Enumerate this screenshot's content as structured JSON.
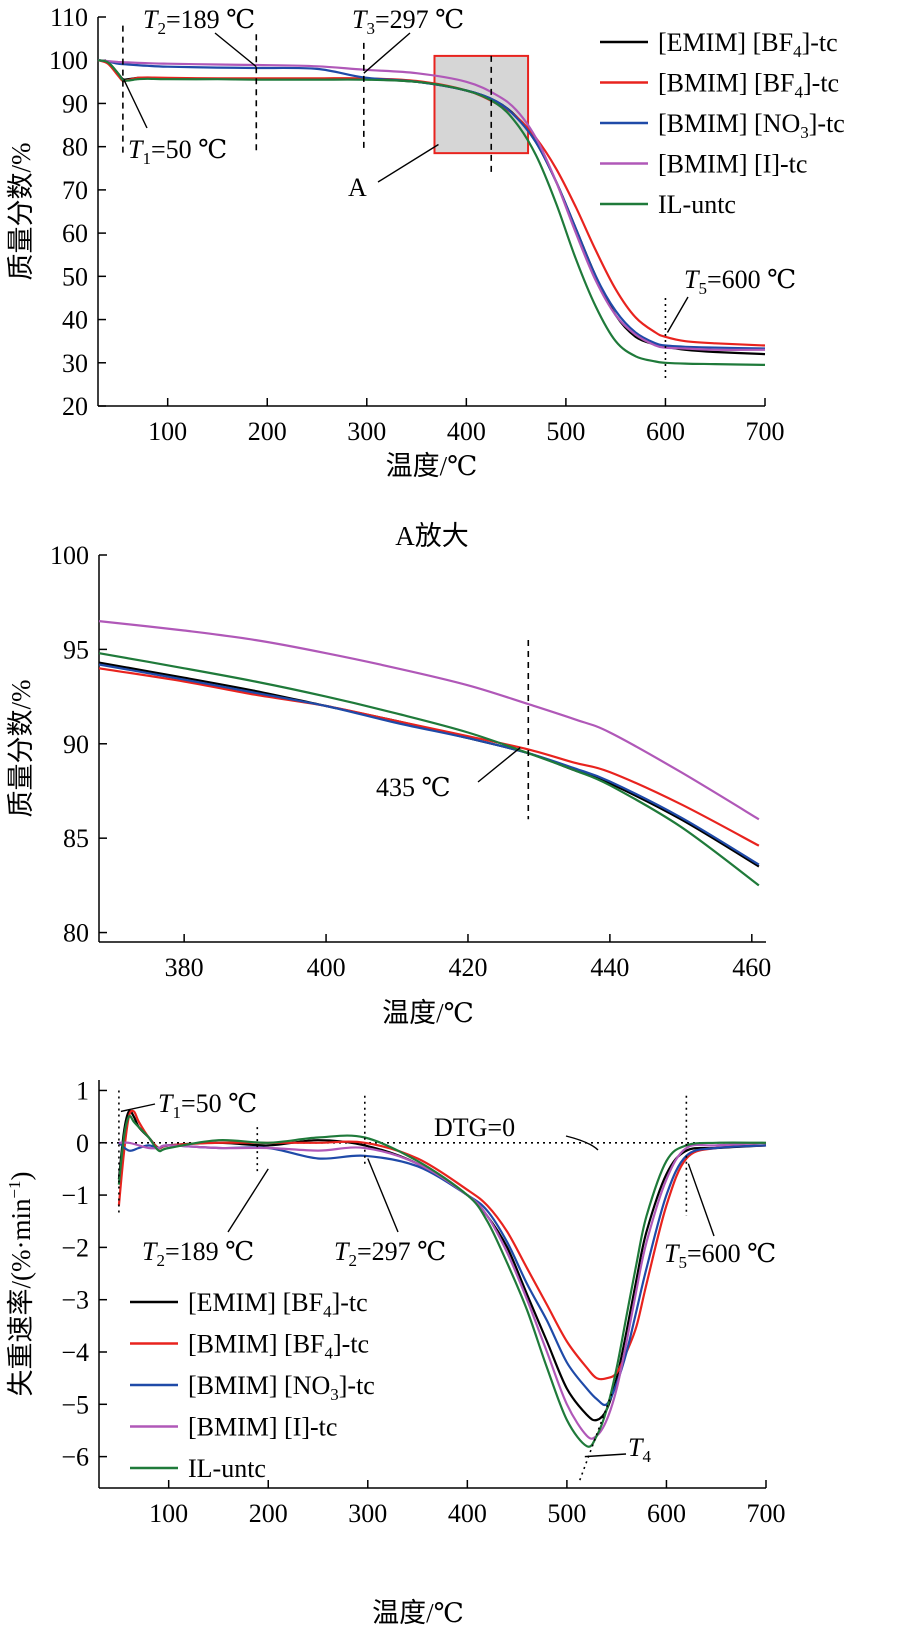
{
  "chart_data": [
    {
      "type": "line",
      "xlabel": "温度/℃",
      "ylabel": "质量分数/%",
      "xlim": [
        30,
        700
      ],
      "ylim": [
        20,
        110
      ],
      "xticks": [
        100,
        200,
        300,
        400,
        500,
        600,
        700
      ],
      "yticks": [
        20,
        30,
        40,
        50,
        60,
        70,
        80,
        90,
        100,
        110
      ],
      "legend_position": "top-right",
      "series": [
        {
          "name": "[EMIM] [BF4]-tc",
          "color": "#000000",
          "x": [
            30,
            40,
            50,
            55,
            60,
            70,
            80,
            100,
            150,
            190,
            250,
            297,
            350,
            400,
            430,
            450,
            470,
            490,
            510,
            530,
            550,
            570,
            590,
            600,
            620,
            650,
            700
          ],
          "y": [
            100,
            99.5,
            97,
            95.6,
            95.6,
            95.9,
            95.9,
            95.8,
            95.7,
            95.6,
            95.7,
            95.6,
            95,
            93,
            90.5,
            87,
            81,
            72,
            61,
            50,
            41,
            36,
            34.2,
            33.7,
            33,
            32.5,
            32
          ]
        },
        {
          "name": "[BMIM] [BF4]-tc",
          "color": "#e8231e",
          "x": [
            30,
            40,
            50,
            55,
            60,
            70,
            80,
            100,
            150,
            190,
            250,
            297,
            350,
            400,
            430,
            450,
            470,
            490,
            510,
            530,
            550,
            570,
            590,
            600,
            620,
            650,
            700
          ],
          "y": [
            100,
            99.2,
            96.5,
            95.2,
            95.4,
            95.9,
            96,
            95.9,
            95.8,
            95.8,
            95.8,
            95.8,
            95.2,
            93,
            90,
            87,
            82,
            75,
            66,
            56,
            47,
            40.5,
            37,
            36,
            35,
            34.5,
            34
          ]
        },
        {
          "name": "[BMIM] [NO3]-tc",
          "color": "#1f4aa8",
          "x": [
            30,
            40,
            50,
            60,
            80,
            100,
            150,
            190,
            250,
            297,
            350,
            400,
            430,
            450,
            470,
            490,
            510,
            530,
            550,
            570,
            590,
            600,
            620,
            650,
            700
          ],
          "y": [
            100,
            99.7,
            99.2,
            99,
            98.7,
            98.5,
            98.3,
            98.2,
            98,
            96,
            95,
            93,
            90.5,
            86.8,
            81,
            72,
            61,
            50,
            42,
            37,
            34.5,
            34,
            33.7,
            33.5,
            33.3
          ]
        },
        {
          "name": "[BMIM] [I]-tc",
          "color": "#b058b8",
          "x": [
            30,
            40,
            50,
            60,
            80,
            100,
            150,
            190,
            250,
            297,
            350,
            400,
            430,
            450,
            470,
            490,
            510,
            530,
            550,
            570,
            590,
            600,
            620,
            650,
            700
          ],
          "y": [
            100,
            99.8,
            99.6,
            99.5,
            99.3,
            99.2,
            99,
            98.9,
            98.6,
            97.8,
            97,
            95,
            92,
            88.5,
            82,
            72,
            60,
            49,
            41,
            36.5,
            34,
            33.5,
            33.3,
            33,
            33
          ]
        },
        {
          "name": "IL-untc",
          "color": "#1f7a3a",
          "x": [
            30,
            40,
            50,
            55,
            60,
            70,
            80,
            100,
            150,
            190,
            250,
            297,
            350,
            400,
            430,
            450,
            470,
            490,
            510,
            530,
            550,
            570,
            590,
            600,
            620,
            650,
            700
          ],
          "y": [
            100,
            99.5,
            97,
            95.4,
            95.3,
            95.6,
            95.7,
            95.6,
            95.6,
            95.5,
            95.5,
            95.5,
            95,
            93,
            90,
            85.5,
            78,
            67,
            54,
            43,
            35,
            31.5,
            30.3,
            30,
            29.8,
            29.7,
            29.5
          ]
        }
      ],
      "annotations": [
        {
          "text_prefix": "T",
          "subscript": "1",
          "text_suffix": "=50 ℃",
          "x": 55
        },
        {
          "text_prefix": "T",
          "subscript": "2",
          "text_suffix": "=189 ℃",
          "x": 189
        },
        {
          "text_prefix": "T",
          "subscript": "3",
          "text_suffix": "=297 ℃",
          "x": 297
        },
        {
          "text_prefix": "T",
          "subscript": "5",
          "text_suffix": "=600 ℃",
          "x": 600
        },
        {
          "text": "A",
          "region_x": [
            368,
            462
          ],
          "region_y": [
            78.5,
            101
          ]
        }
      ]
    },
    {
      "type": "line",
      "title": "A放大",
      "xlabel": "温度/℃",
      "ylabel": "质量分数/%",
      "xlim": [
        368,
        462
      ],
      "ylim": [
        79.5,
        100
      ],
      "xticks": [
        380,
        400,
        420,
        440,
        460
      ],
      "yticks": [
        80,
        85,
        90,
        95,
        100
      ],
      "series": [
        {
          "name": "[EMIM] [BF4]-tc",
          "color": "#000000",
          "x": [
            368,
            380,
            390,
            400,
            410,
            420,
            428.5,
            435,
            440,
            450,
            461
          ],
          "y": [
            94.3,
            93.5,
            92.8,
            92,
            91.2,
            90.3,
            89.5,
            88.6,
            87.9,
            86,
            83.5
          ]
        },
        {
          "name": "[BMIM] [BF4]-tc",
          "color": "#e8231e",
          "x": [
            368,
            380,
            390,
            400,
            410,
            420,
            428.5,
            435,
            440,
            450,
            461
          ],
          "y": [
            94,
            93.3,
            92.6,
            92,
            91.2,
            90.4,
            89.7,
            89,
            88.5,
            86.8,
            84.6
          ]
        },
        {
          "name": "[BMIM] [NO3]-tc",
          "color": "#1f4aa8",
          "x": [
            368,
            380,
            390,
            400,
            410,
            420,
            428.5,
            435,
            440,
            450,
            461
          ],
          "y": [
            94.2,
            93.4,
            92.7,
            92,
            91.1,
            90.3,
            89.5,
            88.7,
            88,
            86.1,
            83.6
          ]
        },
        {
          "name": "[BMIM] [I]-tc",
          "color": "#b058b8",
          "x": [
            368,
            380,
            390,
            400,
            410,
            420,
            428.5,
            435,
            440,
            450,
            461
          ],
          "y": [
            96.5,
            96,
            95.5,
            94.8,
            94,
            93.1,
            92.1,
            91.3,
            90.6,
            88.5,
            86
          ]
        },
        {
          "name": "IL-untc",
          "color": "#1f7a3a",
          "x": [
            368,
            380,
            390,
            400,
            410,
            420,
            428.5,
            435,
            440,
            450,
            461
          ],
          "y": [
            94.8,
            94,
            93.3,
            92.5,
            91.6,
            90.6,
            89.5,
            88.6,
            87.8,
            85.6,
            82.5
          ]
        }
      ],
      "annotations": [
        {
          "text": "435 ℃",
          "x": 428.5
        }
      ]
    },
    {
      "type": "line",
      "xlabel": "温度/℃",
      "ylabel_main": "失重速率/(%·min",
      "ylabel_sup": "−1",
      "ylabel_end": ")",
      "xlim": [
        30,
        700
      ],
      "ylim": [
        -6.6,
        1.2
      ],
      "xticks": [
        100,
        200,
        300,
        400,
        500,
        600,
        700
      ],
      "yticks": [
        1,
        0,
        -1,
        -2,
        -3,
        -4,
        -5,
        -6
      ],
      "ytick_labels": [
        "1",
        "0",
        "−1",
        "−2",
        "−3",
        "−4",
        "−5",
        "−6"
      ],
      "legend_position": "bottom-left",
      "series": [
        {
          "name": "[EMIM] [BF4]-tc",
          "color": "#000000",
          "x": [
            50,
            55,
            60,
            65,
            70,
            80,
            90,
            100,
            150,
            200,
            250,
            297,
            350,
            400,
            420,
            440,
            460,
            480,
            500,
            520,
            530,
            540,
            550,
            560,
            570,
            580,
            600,
            620,
            650,
            700
          ],
          "y": [
            -0.7,
            0.2,
            0.6,
            0.5,
            0.3,
            0.1,
            -0.1,
            -0.05,
            0,
            -0.05,
            0.05,
            -0.05,
            -0.4,
            -1,
            -1.4,
            -2,
            -2.9,
            -3.8,
            -4.7,
            -5.2,
            -5.3,
            -5.1,
            -4.5,
            -3.6,
            -2.6,
            -1.7,
            -0.6,
            -0.15,
            -0.1,
            -0.05
          ]
        },
        {
          "name": "[BMIM] [BF4]-tc",
          "color": "#e8231e",
          "x": [
            50,
            55,
            60,
            65,
            70,
            80,
            90,
            100,
            150,
            200,
            250,
            297,
            350,
            400,
            420,
            440,
            460,
            480,
            500,
            520,
            530,
            540,
            550,
            560,
            570,
            580,
            600,
            620,
            650,
            700
          ],
          "y": [
            -1.2,
            -0.2,
            0.5,
            0.6,
            0.4,
            0.1,
            -0.1,
            -0.05,
            0,
            0,
            0,
            0,
            -0.3,
            -0.9,
            -1.2,
            -1.7,
            -2.4,
            -3.1,
            -3.8,
            -4.3,
            -4.5,
            -4.5,
            -4.4,
            -4,
            -3.5,
            -2.7,
            -1.2,
            -0.3,
            -0.1,
            -0.05
          ]
        },
        {
          "name": "[BMIM] [NO3]-tc",
          "color": "#1f4aa8",
          "x": [
            50,
            60,
            70,
            80,
            90,
            100,
            150,
            200,
            250,
            297,
            350,
            400,
            420,
            440,
            460,
            480,
            500,
            520,
            530,
            540,
            550,
            560,
            570,
            580,
            600,
            620,
            650,
            700
          ],
          "y": [
            0,
            -0.15,
            -0.1,
            -0.05,
            -0.1,
            -0.05,
            -0.1,
            -0.1,
            -0.3,
            -0.25,
            -0.45,
            -1,
            -1.3,
            -1.9,
            -2.7,
            -3.4,
            -4.2,
            -4.7,
            -4.9,
            -5,
            -4.6,
            -4,
            -3.2,
            -2.4,
            -1,
            -0.25,
            -0.1,
            -0.05
          ]
        },
        {
          "name": "[BMIM] [I]-tc",
          "color": "#b058b8",
          "x": [
            50,
            60,
            70,
            80,
            90,
            100,
            150,
            200,
            250,
            297,
            350,
            400,
            420,
            440,
            460,
            480,
            500,
            520,
            530,
            540,
            550,
            560,
            570,
            580,
            600,
            620,
            650,
            700
          ],
          "y": [
            0,
            0,
            -0.05,
            -0.1,
            -0.1,
            -0.05,
            -0.1,
            -0.1,
            -0.15,
            -0.1,
            -0.4,
            -1,
            -1.4,
            -2.1,
            -3,
            -4,
            -5,
            -5.6,
            -5.6,
            -5.3,
            -4.7,
            -3.8,
            -2.8,
            -1.9,
            -0.7,
            -0.1,
            -0.05,
            0
          ]
        },
        {
          "name": "IL-untc",
          "color": "#1f7a3a",
          "x": [
            50,
            55,
            60,
            65,
            70,
            80,
            90,
            100,
            150,
            200,
            250,
            297,
            350,
            400,
            420,
            440,
            460,
            480,
            500,
            520,
            530,
            540,
            550,
            560,
            570,
            580,
            600,
            620,
            650,
            700
          ],
          "y": [
            -0.8,
            0.1,
            0.5,
            0.4,
            0.3,
            0.1,
            -0.15,
            -0.1,
            0.05,
            0,
            0.1,
            0.1,
            -0.35,
            -1,
            -1.5,
            -2.3,
            -3.2,
            -4.3,
            -5.3,
            -5.8,
            -5.6,
            -5.1,
            -4.3,
            -3.3,
            -2.3,
            -1.4,
            -0.35,
            -0.05,
            0,
            0
          ]
        }
      ],
      "annotations": [
        {
          "text_prefix": "T",
          "subscript": "1",
          "text_suffix": "=50 ℃",
          "x": 50
        },
        {
          "text_prefix": "T",
          "subscript": "2",
          "text_suffix": "=189 ℃",
          "x": 189
        },
        {
          "text_prefix": "T",
          "subscript": "2",
          "text_suffix": "=297 ℃",
          "x": 297
        },
        {
          "text_prefix": "T",
          "subscript": "5",
          "text_suffix": "=600 ℃",
          "x": 620
        },
        {
          "text_prefix": "T",
          "subscript": "4",
          "text_suffix": ""
        },
        {
          "text": "DTG=0",
          "y": 0
        }
      ]
    }
  ]
}
